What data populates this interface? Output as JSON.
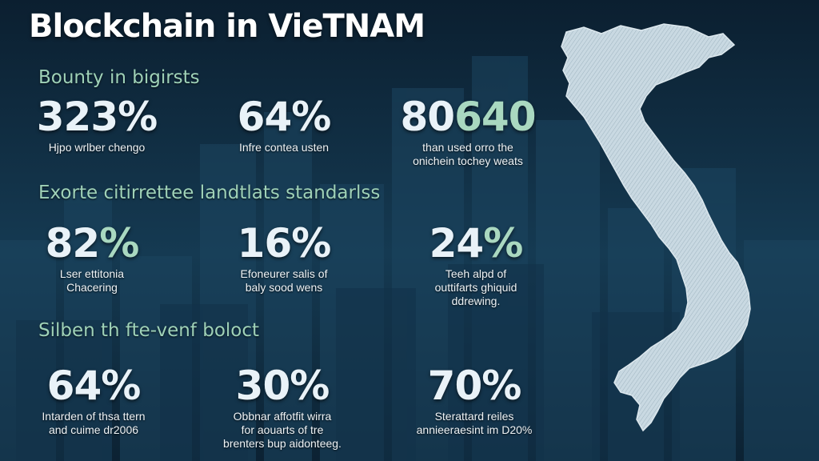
{
  "title": "Blockchain in VieTNAM",
  "sections": [
    {
      "heading": "Bounty in bigirsts",
      "stats": [
        {
          "value": "323%",
          "caption_lines": [
            "Hjpo wrlber chengo"
          ]
        },
        {
          "value": "64%",
          "caption_lines": [
            "Infre contea usten"
          ]
        },
        {
          "value_main": "80",
          "value_accent": "640",
          "caption_lines": [
            "than used orro the",
            "onichein tochey weats"
          ]
        }
      ]
    },
    {
      "heading": "Exorte citirrettee landtlats standarlss",
      "stats": [
        {
          "value_main": "82",
          "value_accent": "%",
          "caption_lines": [
            "Lser ettitonia",
            "Chacering"
          ]
        },
        {
          "value": "16%",
          "caption_lines": [
            "Efoneurer salis of",
            "baly sood wens"
          ]
        },
        {
          "value_main": "24",
          "value_accent": "%",
          "caption_lines": [
            "Teeh alpd of",
            "outtifarts ghiquid",
            "ddrewing."
          ]
        }
      ]
    },
    {
      "heading": "Silben th fte-venf boloct",
      "stats": [
        {
          "value": "64%",
          "caption_lines": [
            "Intarden of thsa ttern",
            "and cuime dr2006"
          ]
        },
        {
          "value": "30%",
          "caption_lines": [
            "Obbnar affotfit wirra",
            "for aouarts of tre",
            "brenters bup aidonteeg."
          ]
        },
        {
          "value": "70%",
          "caption_lines": [
            "Sterattard reiles",
            "annieeraesint im D20%"
          ]
        }
      ]
    }
  ],
  "colors": {
    "background": "#0d2436",
    "heading": "#9fd2b8",
    "accent": "#a9d8c0",
    "text": "#e9f2f8",
    "map": "#c9d9e2"
  },
  "map_icon": "vietnam-map-silhouette"
}
